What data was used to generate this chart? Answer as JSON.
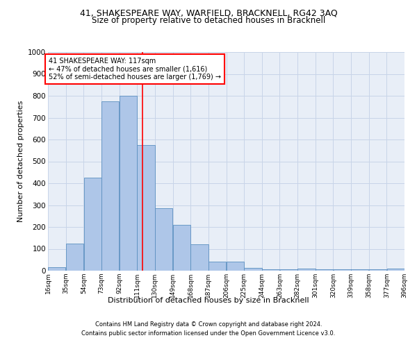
{
  "title1": "41, SHAKESPEARE WAY, WARFIELD, BRACKNELL, RG42 3AQ",
  "title2": "Size of property relative to detached houses in Bracknell",
  "xlabel": "Distribution of detached houses by size in Bracknell",
  "ylabel": "Number of detached properties",
  "footnote1": "Contains HM Land Registry data © Crown copyright and database right 2024.",
  "footnote2": "Contains public sector information licensed under the Open Government Licence v3.0.",
  "annotation_line1": "41 SHAKESPEARE WAY: 117sqm",
  "annotation_line2": "← 47% of detached houses are smaller (1,616)",
  "annotation_line3": "52% of semi-detached houses are larger (1,769) →",
  "property_size": 117,
  "bar_left_edges": [
    16,
    35,
    54,
    73,
    92,
    111,
    130,
    149,
    168,
    187,
    206,
    225,
    244,
    263,
    282,
    301,
    320,
    339,
    358,
    377
  ],
  "bar_widths": [
    19,
    19,
    19,
    19,
    19,
    19,
    19,
    19,
    19,
    19,
    19,
    19,
    19,
    19,
    19,
    19,
    19,
    19,
    19,
    19
  ],
  "bar_heights": [
    17,
    125,
    425,
    775,
    800,
    575,
    285,
    210,
    120,
    40,
    40,
    12,
    7,
    5,
    10,
    5,
    5,
    5,
    5,
    8
  ],
  "bar_color": "#aec6e8",
  "bar_edge_color": "#5a8fc0",
  "vline_x": 117,
  "vline_color": "red",
  "annotation_box_color": "red",
  "annotation_text_color": "black",
  "annotation_fill_color": "white",
  "ylim": [
    0,
    1000
  ],
  "xlim": [
    16,
    396
  ],
  "xtick_labels": [
    "16sqm",
    "35sqm",
    "54sqm",
    "73sqm",
    "92sqm",
    "111sqm",
    "130sqm",
    "149sqm",
    "168sqm",
    "187sqm",
    "206sqm",
    "225sqm",
    "244sqm",
    "263sqm",
    "282sqm",
    "301sqm",
    "320sqm",
    "339sqm",
    "358sqm",
    "377sqm",
    "396sqm"
  ],
  "xtick_positions": [
    16,
    35,
    54,
    73,
    92,
    111,
    130,
    149,
    168,
    187,
    206,
    225,
    244,
    263,
    282,
    301,
    320,
    339,
    358,
    377,
    396
  ],
  "ytick_positions": [
    0,
    100,
    200,
    300,
    400,
    500,
    600,
    700,
    800,
    900,
    1000
  ],
  "grid_color": "#c8d4e8",
  "bg_color": "#e8eef7",
  "fig_bg_color": "#ffffff"
}
